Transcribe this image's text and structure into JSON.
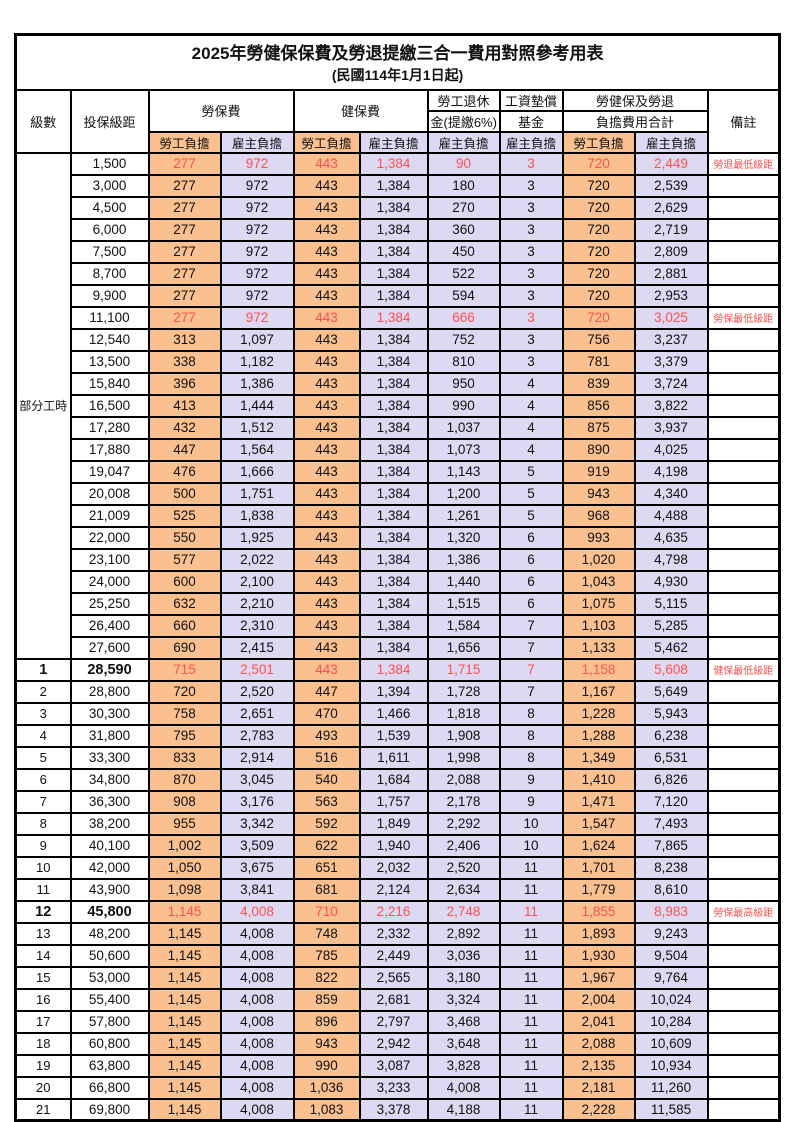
{
  "title": "2025年勞健保保費及勞退提繳三合一費用對照參考用表",
  "subtitle": "(民國114年1月1日起)",
  "colors": {
    "employee_bg": "#FAC090",
    "employer_bg": "#DDD9F2",
    "highlight_text": "#FF5050",
    "border": "#000000"
  },
  "header": {
    "level": "級數",
    "bracket": "投保級距",
    "labor_ins": "勞保費",
    "health_ins": "健保費",
    "pension_line1": "勞工退休",
    "pension_line2": "金(提繳6%)",
    "arrears_line1": "工資墊償",
    "arrears_line2": "基金",
    "total_line1": "勞健保及勞退",
    "total_line2": "負擔費用合計",
    "remark": "備註",
    "employee": "勞工負擔",
    "employer": "雇主負擔"
  },
  "part_time_label": "部分工時",
  "part_time_rowspan": 23,
  "chart_data": {
    "type": "table",
    "title": "2025年勞健保保費及勞退提繳三合一費用對照參考用表",
    "columns": [
      "級數",
      "投保級距",
      "勞保費-勞工負擔",
      "勞保費-雇主負擔",
      "健保費-勞工負擔",
      "健保費-雇主負擔",
      "勞工退休金(提繳6%)-雇主負擔",
      "工資墊償基金-雇主負擔",
      "合計-勞工負擔",
      "合計-雇主負擔",
      "備註"
    ]
  },
  "rows": [
    {
      "level": "",
      "bracket": "1,500",
      "labor_emp": "277",
      "labor_er": "972",
      "health_emp": "443",
      "health_er": "1,384",
      "pension": "90",
      "arrears": "3",
      "total_emp": "720",
      "total_er": "2,449",
      "remark": "勞退最低級距",
      "highlight": true,
      "emph": false
    },
    {
      "level": "",
      "bracket": "3,000",
      "labor_emp": "277",
      "labor_er": "972",
      "health_emp": "443",
      "health_er": "1,384",
      "pension": "180",
      "arrears": "3",
      "total_emp": "720",
      "total_er": "2,539",
      "remark": "",
      "highlight": false,
      "emph": false
    },
    {
      "level": "",
      "bracket": "4,500",
      "labor_emp": "277",
      "labor_er": "972",
      "health_emp": "443",
      "health_er": "1,384",
      "pension": "270",
      "arrears": "3",
      "total_emp": "720",
      "total_er": "2,629",
      "remark": "",
      "highlight": false,
      "emph": false
    },
    {
      "level": "",
      "bracket": "6,000",
      "labor_emp": "277",
      "labor_er": "972",
      "health_emp": "443",
      "health_er": "1,384",
      "pension": "360",
      "arrears": "3",
      "total_emp": "720",
      "total_er": "2,719",
      "remark": "",
      "highlight": false,
      "emph": false
    },
    {
      "level": "",
      "bracket": "7,500",
      "labor_emp": "277",
      "labor_er": "972",
      "health_emp": "443",
      "health_er": "1,384",
      "pension": "450",
      "arrears": "3",
      "total_emp": "720",
      "total_er": "2,809",
      "remark": "",
      "highlight": false,
      "emph": false
    },
    {
      "level": "",
      "bracket": "8,700",
      "labor_emp": "277",
      "labor_er": "972",
      "health_emp": "443",
      "health_er": "1,384",
      "pension": "522",
      "arrears": "3",
      "total_emp": "720",
      "total_er": "2,881",
      "remark": "",
      "highlight": false,
      "emph": false
    },
    {
      "level": "",
      "bracket": "9,900",
      "labor_emp": "277",
      "labor_er": "972",
      "health_emp": "443",
      "health_er": "1,384",
      "pension": "594",
      "arrears": "3",
      "total_emp": "720",
      "total_er": "2,953",
      "remark": "",
      "highlight": false,
      "emph": false
    },
    {
      "level": "",
      "bracket": "11,100",
      "labor_emp": "277",
      "labor_er": "972",
      "health_emp": "443",
      "health_er": "1,384",
      "pension": "666",
      "arrears": "3",
      "total_emp": "720",
      "total_er": "3,025",
      "remark": "勞保最低級距",
      "highlight": true,
      "emph": false
    },
    {
      "level": "",
      "bracket": "12,540",
      "labor_emp": "313",
      "labor_er": "1,097",
      "health_emp": "443",
      "health_er": "1,384",
      "pension": "752",
      "arrears": "3",
      "total_emp": "756",
      "total_er": "3,237",
      "remark": "",
      "highlight": false,
      "emph": false
    },
    {
      "level": "",
      "bracket": "13,500",
      "labor_emp": "338",
      "labor_er": "1,182",
      "health_emp": "443",
      "health_er": "1,384",
      "pension": "810",
      "arrears": "3",
      "total_emp": "781",
      "total_er": "3,379",
      "remark": "",
      "highlight": false,
      "emph": false
    },
    {
      "level": "",
      "bracket": "15,840",
      "labor_emp": "396",
      "labor_er": "1,386",
      "health_emp": "443",
      "health_er": "1,384",
      "pension": "950",
      "arrears": "4",
      "total_emp": "839",
      "total_er": "3,724",
      "remark": "",
      "highlight": false,
      "emph": false
    },
    {
      "level": "",
      "bracket": "16,500",
      "labor_emp": "413",
      "labor_er": "1,444",
      "health_emp": "443",
      "health_er": "1,384",
      "pension": "990",
      "arrears": "4",
      "total_emp": "856",
      "total_er": "3,822",
      "remark": "",
      "highlight": false,
      "emph": false
    },
    {
      "level": "",
      "bracket": "17,280",
      "labor_emp": "432",
      "labor_er": "1,512",
      "health_emp": "443",
      "health_er": "1,384",
      "pension": "1,037",
      "arrears": "4",
      "total_emp": "875",
      "total_er": "3,937",
      "remark": "",
      "highlight": false,
      "emph": false
    },
    {
      "level": "",
      "bracket": "17,880",
      "labor_emp": "447",
      "labor_er": "1,564",
      "health_emp": "443",
      "health_er": "1,384",
      "pension": "1,073",
      "arrears": "4",
      "total_emp": "890",
      "total_er": "4,025",
      "remark": "",
      "highlight": false,
      "emph": false
    },
    {
      "level": "",
      "bracket": "19,047",
      "labor_emp": "476",
      "labor_er": "1,666",
      "health_emp": "443",
      "health_er": "1,384",
      "pension": "1,143",
      "arrears": "5",
      "total_emp": "919",
      "total_er": "4,198",
      "remark": "",
      "highlight": false,
      "emph": false
    },
    {
      "level": "",
      "bracket": "20,008",
      "labor_emp": "500",
      "labor_er": "1,751",
      "health_emp": "443",
      "health_er": "1,384",
      "pension": "1,200",
      "arrears": "5",
      "total_emp": "943",
      "total_er": "4,340",
      "remark": "",
      "highlight": false,
      "emph": false
    },
    {
      "level": "",
      "bracket": "21,009",
      "labor_emp": "525",
      "labor_er": "1,838",
      "health_emp": "443",
      "health_er": "1,384",
      "pension": "1,261",
      "arrears": "5",
      "total_emp": "968",
      "total_er": "4,488",
      "remark": "",
      "highlight": false,
      "emph": false
    },
    {
      "level": "",
      "bracket": "22,000",
      "labor_emp": "550",
      "labor_er": "1,925",
      "health_emp": "443",
      "health_er": "1,384",
      "pension": "1,320",
      "arrears": "6",
      "total_emp": "993",
      "total_er": "4,635",
      "remark": "",
      "highlight": false,
      "emph": false
    },
    {
      "level": "",
      "bracket": "23,100",
      "labor_emp": "577",
      "labor_er": "2,022",
      "health_emp": "443",
      "health_er": "1,384",
      "pension": "1,386",
      "arrears": "6",
      "total_emp": "1,020",
      "total_er": "4,798",
      "remark": "",
      "highlight": false,
      "emph": false
    },
    {
      "level": "",
      "bracket": "24,000",
      "labor_emp": "600",
      "labor_er": "2,100",
      "health_emp": "443",
      "health_er": "1,384",
      "pension": "1,440",
      "arrears": "6",
      "total_emp": "1,043",
      "total_er": "4,930",
      "remark": "",
      "highlight": false,
      "emph": false
    },
    {
      "level": "",
      "bracket": "25,250",
      "labor_emp": "632",
      "labor_er": "2,210",
      "health_emp": "443",
      "health_er": "1,384",
      "pension": "1,515",
      "arrears": "6",
      "total_emp": "1,075",
      "total_er": "5,115",
      "remark": "",
      "highlight": false,
      "emph": false
    },
    {
      "level": "",
      "bracket": "26,400",
      "labor_emp": "660",
      "labor_er": "2,310",
      "health_emp": "443",
      "health_er": "1,384",
      "pension": "1,584",
      "arrears": "7",
      "total_emp": "1,103",
      "total_er": "5,285",
      "remark": "",
      "highlight": false,
      "emph": false
    },
    {
      "level": "",
      "bracket": "27,600",
      "labor_emp": "690",
      "labor_er": "2,415",
      "health_emp": "443",
      "health_er": "1,384",
      "pension": "1,656",
      "arrears": "7",
      "total_emp": "1,133",
      "total_er": "5,462",
      "remark": "",
      "highlight": false,
      "emph": false
    },
    {
      "level": "1",
      "bracket": "28,590",
      "labor_emp": "715",
      "labor_er": "2,501",
      "health_emp": "443",
      "health_er": "1,384",
      "pension": "1,715",
      "arrears": "7",
      "total_emp": "1,158",
      "total_er": "5,608",
      "remark": "健保最低級距",
      "highlight": true,
      "emph": true
    },
    {
      "level": "2",
      "bracket": "28,800",
      "labor_emp": "720",
      "labor_er": "2,520",
      "health_emp": "447",
      "health_er": "1,394",
      "pension": "1,728",
      "arrears": "7",
      "total_emp": "1,167",
      "total_er": "5,649",
      "remark": "",
      "highlight": false,
      "emph": false
    },
    {
      "level": "3",
      "bracket": "30,300",
      "labor_emp": "758",
      "labor_er": "2,651",
      "health_emp": "470",
      "health_er": "1,466",
      "pension": "1,818",
      "arrears": "8",
      "total_emp": "1,228",
      "total_er": "5,943",
      "remark": "",
      "highlight": false,
      "emph": false
    },
    {
      "level": "4",
      "bracket": "31,800",
      "labor_emp": "795",
      "labor_er": "2,783",
      "health_emp": "493",
      "health_er": "1,539",
      "pension": "1,908",
      "arrears": "8",
      "total_emp": "1,288",
      "total_er": "6,238",
      "remark": "",
      "highlight": false,
      "emph": false
    },
    {
      "level": "5",
      "bracket": "33,300",
      "labor_emp": "833",
      "labor_er": "2,914",
      "health_emp": "516",
      "health_er": "1,611",
      "pension": "1,998",
      "arrears": "8",
      "total_emp": "1,349",
      "total_er": "6,531",
      "remark": "",
      "highlight": false,
      "emph": false
    },
    {
      "level": "6",
      "bracket": "34,800",
      "labor_emp": "870",
      "labor_er": "3,045",
      "health_emp": "540",
      "health_er": "1,684",
      "pension": "2,088",
      "arrears": "9",
      "total_emp": "1,410",
      "total_er": "6,826",
      "remark": "",
      "highlight": false,
      "emph": false
    },
    {
      "level": "7",
      "bracket": "36,300",
      "labor_emp": "908",
      "labor_er": "3,176",
      "health_emp": "563",
      "health_er": "1,757",
      "pension": "2,178",
      "arrears": "9",
      "total_emp": "1,471",
      "total_er": "7,120",
      "remark": "",
      "highlight": false,
      "emph": false
    },
    {
      "level": "8",
      "bracket": "38,200",
      "labor_emp": "955",
      "labor_er": "3,342",
      "health_emp": "592",
      "health_er": "1,849",
      "pension": "2,292",
      "arrears": "10",
      "total_emp": "1,547",
      "total_er": "7,493",
      "remark": "",
      "highlight": false,
      "emph": false
    },
    {
      "level": "9",
      "bracket": "40,100",
      "labor_emp": "1,002",
      "labor_er": "3,509",
      "health_emp": "622",
      "health_er": "1,940",
      "pension": "2,406",
      "arrears": "10",
      "total_emp": "1,624",
      "total_er": "7,865",
      "remark": "",
      "highlight": false,
      "emph": false
    },
    {
      "level": "10",
      "bracket": "42,000",
      "labor_emp": "1,050",
      "labor_er": "3,675",
      "health_emp": "651",
      "health_er": "2,032",
      "pension": "2,520",
      "arrears": "11",
      "total_emp": "1,701",
      "total_er": "8,238",
      "remark": "",
      "highlight": false,
      "emph": false
    },
    {
      "level": "11",
      "bracket": "43,900",
      "labor_emp": "1,098",
      "labor_er": "3,841",
      "health_emp": "681",
      "health_er": "2,124",
      "pension": "2,634",
      "arrears": "11",
      "total_emp": "1,779",
      "total_er": "8,610",
      "remark": "",
      "highlight": false,
      "emph": false
    },
    {
      "level": "12",
      "bracket": "45,800",
      "labor_emp": "1,145",
      "labor_er": "4,008",
      "health_emp": "710",
      "health_er": "2,216",
      "pension": "2,748",
      "arrears": "11",
      "total_emp": "1,855",
      "total_er": "8,983",
      "remark": "勞保最高級距",
      "highlight": true,
      "emph": true
    },
    {
      "level": "13",
      "bracket": "48,200",
      "labor_emp": "1,145",
      "labor_er": "4,008",
      "health_emp": "748",
      "health_er": "2,332",
      "pension": "2,892",
      "arrears": "11",
      "total_emp": "1,893",
      "total_er": "9,243",
      "remark": "",
      "highlight": false,
      "emph": false
    },
    {
      "level": "14",
      "bracket": "50,600",
      "labor_emp": "1,145",
      "labor_er": "4,008",
      "health_emp": "785",
      "health_er": "2,449",
      "pension": "3,036",
      "arrears": "11",
      "total_emp": "1,930",
      "total_er": "9,504",
      "remark": "",
      "highlight": false,
      "emph": false
    },
    {
      "level": "15",
      "bracket": "53,000",
      "labor_emp": "1,145",
      "labor_er": "4,008",
      "health_emp": "822",
      "health_er": "2,565",
      "pension": "3,180",
      "arrears": "11",
      "total_emp": "1,967",
      "total_er": "9,764",
      "remark": "",
      "highlight": false,
      "emph": false
    },
    {
      "level": "16",
      "bracket": "55,400",
      "labor_emp": "1,145",
      "labor_er": "4,008",
      "health_emp": "859",
      "health_er": "2,681",
      "pension": "3,324",
      "arrears": "11",
      "total_emp": "2,004",
      "total_er": "10,024",
      "remark": "",
      "highlight": false,
      "emph": false
    },
    {
      "level": "17",
      "bracket": "57,800",
      "labor_emp": "1,145",
      "labor_er": "4,008",
      "health_emp": "896",
      "health_er": "2,797",
      "pension": "3,468",
      "arrears": "11",
      "total_emp": "2,041",
      "total_er": "10,284",
      "remark": "",
      "highlight": false,
      "emph": false
    },
    {
      "level": "18",
      "bracket": "60,800",
      "labor_emp": "1,145",
      "labor_er": "4,008",
      "health_emp": "943",
      "health_er": "2,942",
      "pension": "3,648",
      "arrears": "11",
      "total_emp": "2,088",
      "total_er": "10,609",
      "remark": "",
      "highlight": false,
      "emph": false
    },
    {
      "level": "19",
      "bracket": "63,800",
      "labor_emp": "1,145",
      "labor_er": "4,008",
      "health_emp": "990",
      "health_er": "3,087",
      "pension": "3,828",
      "arrears": "11",
      "total_emp": "2,135",
      "total_er": "10,934",
      "remark": "",
      "highlight": false,
      "emph": false
    },
    {
      "level": "20",
      "bracket": "66,800",
      "labor_emp": "1,145",
      "labor_er": "4,008",
      "health_emp": "1,036",
      "health_er": "3,233",
      "pension": "4,008",
      "arrears": "11",
      "total_emp": "2,181",
      "total_er": "11,260",
      "remark": "",
      "highlight": false,
      "emph": false
    },
    {
      "level": "21",
      "bracket": "69,800",
      "labor_emp": "1,145",
      "labor_er": "4,008",
      "health_emp": "1,083",
      "health_er": "3,378",
      "pension": "4,188",
      "arrears": "11",
      "total_emp": "2,228",
      "total_er": "11,585",
      "remark": "",
      "highlight": false,
      "emph": false
    }
  ]
}
